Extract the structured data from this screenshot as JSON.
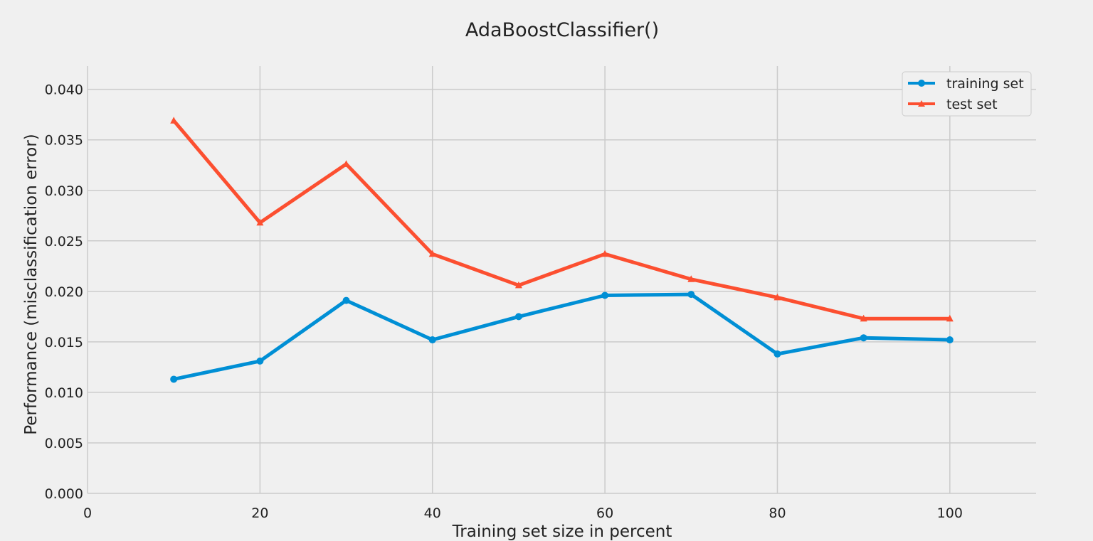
{
  "chart_data": {
    "type": "line",
    "title": "AdaBoostClassifier()",
    "xlabel": "Training set size in percent",
    "ylabel": "Performance (misclassification error)",
    "xlim": [
      0,
      110
    ],
    "ylim": [
      0,
      0.0423
    ],
    "x_ticks": [
      0,
      20,
      40,
      60,
      80,
      100
    ],
    "x_tick_labels": [
      "0",
      "20",
      "40",
      "60",
      "80",
      "100"
    ],
    "y_ticks": [
      0,
      0.005,
      0.01,
      0.015,
      0.02,
      0.025,
      0.03,
      0.035,
      0.04
    ],
    "y_tick_labels": [
      "0.000",
      "0.005",
      "0.010",
      "0.015",
      "0.020",
      "0.025",
      "0.030",
      "0.035",
      "0.040"
    ],
    "grid": true,
    "legend_position": "top-right",
    "x": [
      10,
      20,
      30,
      40,
      50,
      60,
      70,
      80,
      90,
      100
    ],
    "series": [
      {
        "name": "training set",
        "color": "#008fd5",
        "marker": "circle",
        "values": [
          0.0113,
          0.0131,
          0.0191,
          0.0152,
          0.0175,
          0.0196,
          0.0197,
          0.0138,
          0.0154,
          0.0152
        ]
      },
      {
        "name": "test set",
        "color": "#fc4f30",
        "marker": "triangle",
        "values": [
          0.0369,
          0.0268,
          0.0326,
          0.0237,
          0.0206,
          0.0237,
          0.0212,
          0.0194,
          0.0173,
          0.0173
        ]
      }
    ]
  }
}
